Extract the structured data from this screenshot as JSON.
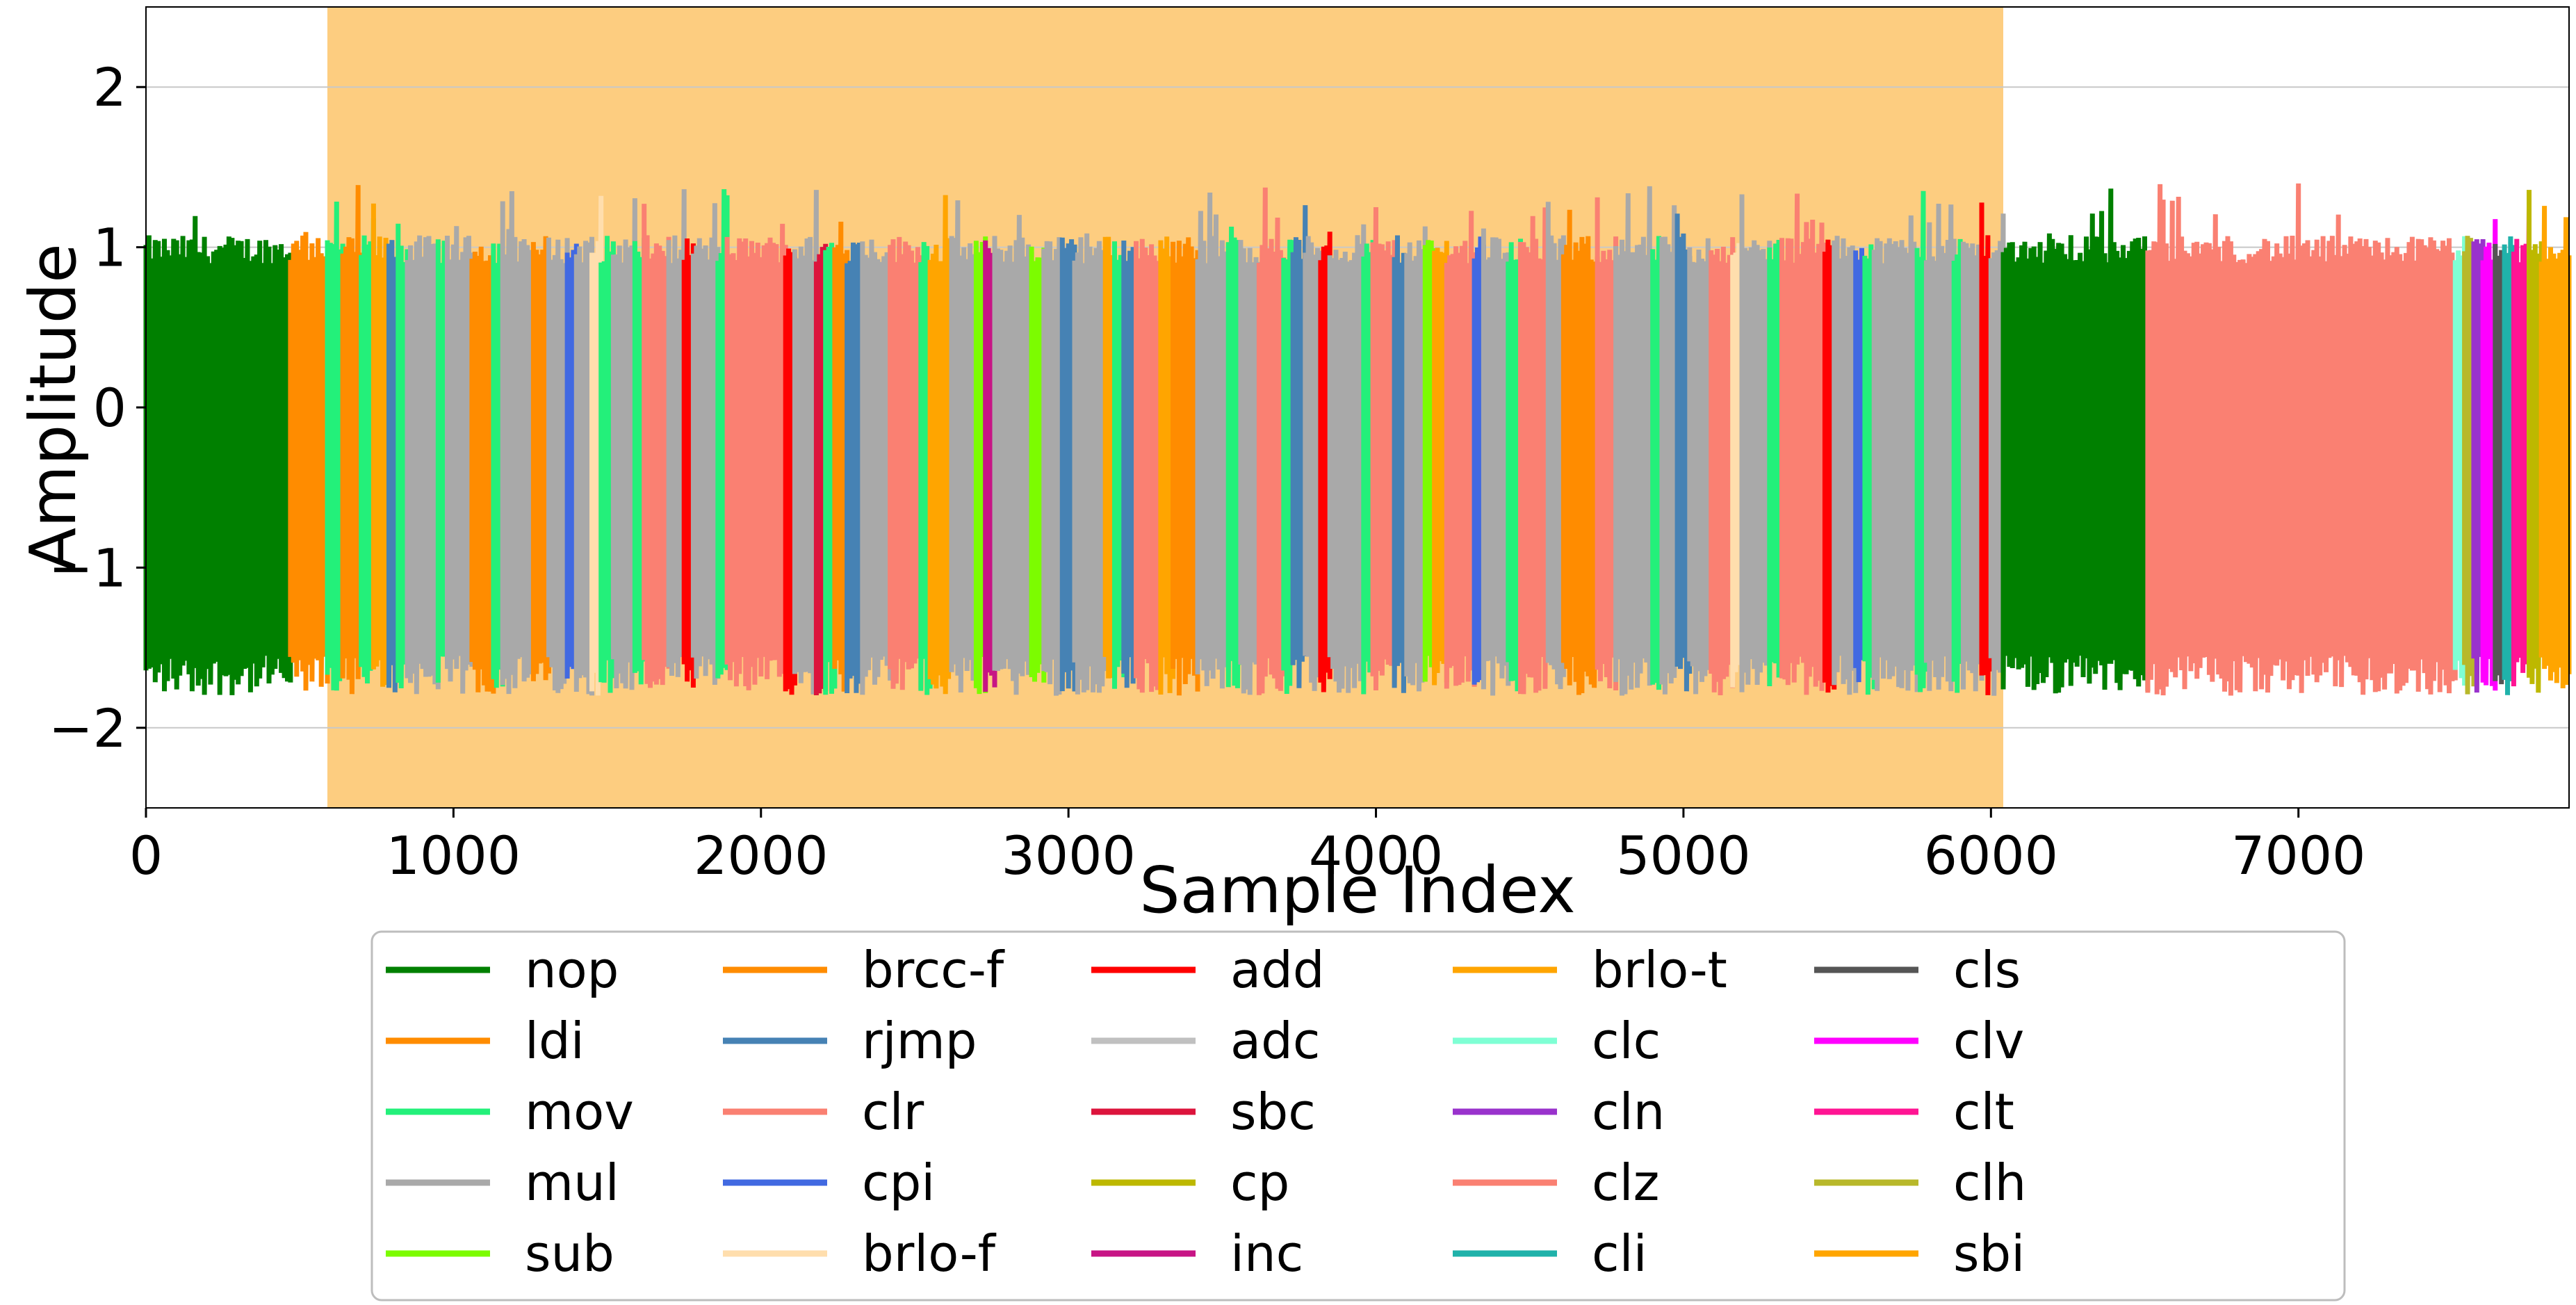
{
  "chart_data": {
    "type": "line",
    "title": "",
    "xlabel": "Sample Index",
    "ylabel": "Amplitude",
    "xlim": [
      0,
      7880
    ],
    "ylim": [
      -2.5,
      2.5
    ],
    "x_ticks": [
      0,
      1000,
      2000,
      3000,
      4000,
      5000,
      6000,
      7000
    ],
    "y_ticks": [
      -2,
      -1,
      0,
      1,
      2
    ],
    "x_tick_labels": [
      "0",
      "1000",
      "2000",
      "3000",
      "4000",
      "5000",
      "6000",
      "7000"
    ],
    "y_tick_labels": [
      "−2",
      "−1",
      "0",
      "1",
      "2"
    ],
    "grid": "horizontal",
    "highlight_region": {
      "x_start": 590,
      "x_end": 6040,
      "color": "#fdcd80"
    },
    "signal_peak_range": [
      0.9,
      1.4
    ],
    "signal_trough_range": [
      -1.8,
      -1.55
    ],
    "legend_position": "bottom-center",
    "legend_columns": 6,
    "series": [
      {
        "name": "nop",
        "color": "#008000"
      },
      {
        "name": "ldi",
        "color": "#ff8c00"
      },
      {
        "name": "mov",
        "color": "#23f07a"
      },
      {
        "name": "mul",
        "color": "#a9a9a9"
      },
      {
        "name": "sub",
        "color": "#7cfc00"
      },
      {
        "name": "brcc-f",
        "color": "#ff8c00"
      },
      {
        "name": "rjmp",
        "color": "#4682b4"
      },
      {
        "name": "clr",
        "color": "#fa8072"
      },
      {
        "name": "cpi",
        "color": "#4169e1"
      },
      {
        "name": "brlo-f",
        "color": "#ffdead"
      },
      {
        "name": "add",
        "color": "#ff0000"
      },
      {
        "name": "adc",
        "color": "#c0c0c0"
      },
      {
        "name": "sbc",
        "color": "#dc143c"
      },
      {
        "name": "cp",
        "color": "#bdb800"
      },
      {
        "name": "inc",
        "color": "#c71585"
      },
      {
        "name": "brlo-t",
        "color": "#ffa500"
      },
      {
        "name": "clc",
        "color": "#7fffd4"
      },
      {
        "name": "cln",
        "color": "#9932cc"
      },
      {
        "name": "clz",
        "color": "#fa8072"
      },
      {
        "name": "cli",
        "color": "#20b2aa"
      },
      {
        "name": "cls",
        "color": "#555555"
      },
      {
        "name": "clv",
        "color": "#ff00ff"
      },
      {
        "name": "clt",
        "color": "#ff1493"
      },
      {
        "name": "clh",
        "color": "#b8b82a"
      },
      {
        "name": "sbi",
        "color": "#ffa500"
      }
    ],
    "segments": [
      {
        "name": "nop",
        "x_start": 0,
        "x_end": 470
      },
      {
        "name": "ldi",
        "x_start": 470,
        "x_end": 590
      },
      {
        "name": "mov",
        "x_start": 590,
        "x_end": 640
      },
      {
        "name": "ldi",
        "x_start": 640,
        "x_end": 700
      },
      {
        "name": "mov",
        "x_start": 700,
        "x_end": 740
      },
      {
        "name": "brlo-t",
        "x_start": 740,
        "x_end": 790
      },
      {
        "name": "rjmp",
        "x_start": 790,
        "x_end": 820
      },
      {
        "name": "mov",
        "x_start": 820,
        "x_end": 850
      },
      {
        "name": "mul",
        "x_start": 850,
        "x_end": 950
      },
      {
        "name": "mov",
        "x_start": 950,
        "x_end": 980
      },
      {
        "name": "mul",
        "x_start": 980,
        "x_end": 1060
      },
      {
        "name": "ldi",
        "x_start": 1060,
        "x_end": 1130
      },
      {
        "name": "mov",
        "x_start": 1130,
        "x_end": 1160
      },
      {
        "name": "mul",
        "x_start": 1160,
        "x_end": 1260
      },
      {
        "name": "brcc-f",
        "x_start": 1260,
        "x_end": 1310
      },
      {
        "name": "mul",
        "x_start": 1310,
        "x_end": 1370
      },
      {
        "name": "cpi",
        "x_start": 1370,
        "x_end": 1400
      },
      {
        "name": "mul",
        "x_start": 1400,
        "x_end": 1450
      },
      {
        "name": "brlo-f",
        "x_start": 1450,
        "x_end": 1480
      },
      {
        "name": "mov",
        "x_start": 1480,
        "x_end": 1520
      },
      {
        "name": "mul",
        "x_start": 1520,
        "x_end": 1590
      },
      {
        "name": "mov",
        "x_start": 1590,
        "x_end": 1620
      },
      {
        "name": "clr",
        "x_start": 1620,
        "x_end": 1700
      },
      {
        "name": "mul",
        "x_start": 1700,
        "x_end": 1750
      },
      {
        "name": "add",
        "x_start": 1750,
        "x_end": 1780
      },
      {
        "name": "mul",
        "x_start": 1780,
        "x_end": 1860
      },
      {
        "name": "mov",
        "x_start": 1860,
        "x_end": 1890
      },
      {
        "name": "clr",
        "x_start": 1890,
        "x_end": 2080
      },
      {
        "name": "add",
        "x_start": 2080,
        "x_end": 2110
      },
      {
        "name": "mul",
        "x_start": 2110,
        "x_end": 2180
      },
      {
        "name": "sbc",
        "x_start": 2180,
        "x_end": 2210
      },
      {
        "name": "mov",
        "x_start": 2210,
        "x_end": 2240
      },
      {
        "name": "brcc-f",
        "x_start": 2240,
        "x_end": 2280
      },
      {
        "name": "rjmp",
        "x_start": 2280,
        "x_end": 2330
      },
      {
        "name": "mul",
        "x_start": 2330,
        "x_end": 2420
      },
      {
        "name": "clr",
        "x_start": 2420,
        "x_end": 2520
      },
      {
        "name": "mov",
        "x_start": 2520,
        "x_end": 2550
      },
      {
        "name": "brlo-t",
        "x_start": 2550,
        "x_end": 2620
      },
      {
        "name": "mul",
        "x_start": 2620,
        "x_end": 2700
      },
      {
        "name": "sub",
        "x_start": 2700,
        "x_end": 2730
      },
      {
        "name": "inc",
        "x_start": 2730,
        "x_end": 2760
      },
      {
        "name": "mul",
        "x_start": 2760,
        "x_end": 2880
      },
      {
        "name": "sub",
        "x_start": 2880,
        "x_end": 2920
      },
      {
        "name": "mul",
        "x_start": 2920,
        "x_end": 2980
      },
      {
        "name": "rjmp",
        "x_start": 2980,
        "x_end": 3020
      },
      {
        "name": "mul",
        "x_start": 3020,
        "x_end": 3120
      },
      {
        "name": "brlo-t",
        "x_start": 3120,
        "x_end": 3150
      },
      {
        "name": "mov",
        "x_start": 3150,
        "x_end": 3180
      },
      {
        "name": "rjmp",
        "x_start": 3180,
        "x_end": 3220
      },
      {
        "name": "clr",
        "x_start": 3220,
        "x_end": 3300
      },
      {
        "name": "brlo-t",
        "x_start": 3300,
        "x_end": 3340
      },
      {
        "name": "ldi",
        "x_start": 3340,
        "x_end": 3420
      },
      {
        "name": "mul",
        "x_start": 3420,
        "x_end": 3520
      },
      {
        "name": "mov",
        "x_start": 3520,
        "x_end": 3560
      },
      {
        "name": "mul",
        "x_start": 3560,
        "x_end": 3620
      },
      {
        "name": "clr",
        "x_start": 3620,
        "x_end": 3700
      },
      {
        "name": "mov",
        "x_start": 3700,
        "x_end": 3730
      },
      {
        "name": "rjmp",
        "x_start": 3730,
        "x_end": 3770
      },
      {
        "name": "mul",
        "x_start": 3770,
        "x_end": 3820
      },
      {
        "name": "add",
        "x_start": 3820,
        "x_end": 3850
      },
      {
        "name": "mul",
        "x_start": 3850,
        "x_end": 3960
      },
      {
        "name": "mov",
        "x_start": 3960,
        "x_end": 3990
      },
      {
        "name": "clr",
        "x_start": 3990,
        "x_end": 4060
      },
      {
        "name": "rjmp",
        "x_start": 4060,
        "x_end": 4100
      },
      {
        "name": "mul",
        "x_start": 4100,
        "x_end": 4160
      },
      {
        "name": "sub",
        "x_start": 4160,
        "x_end": 4190
      },
      {
        "name": "brlo-t",
        "x_start": 4190,
        "x_end": 4230
      },
      {
        "name": "clr",
        "x_start": 4230,
        "x_end": 4320
      },
      {
        "name": "cpi",
        "x_start": 4320,
        "x_end": 4350
      },
      {
        "name": "mul",
        "x_start": 4350,
        "x_end": 4430
      },
      {
        "name": "mov",
        "x_start": 4430,
        "x_end": 4470
      },
      {
        "name": "clr",
        "x_start": 4470,
        "x_end": 4560
      },
      {
        "name": "mul",
        "x_start": 4560,
        "x_end": 4610
      },
      {
        "name": "brcc-f",
        "x_start": 4610,
        "x_end": 4720
      },
      {
        "name": "clr",
        "x_start": 4720,
        "x_end": 4780
      },
      {
        "name": "mul",
        "x_start": 4780,
        "x_end": 4900
      },
      {
        "name": "mov",
        "x_start": 4900,
        "x_end": 4930
      },
      {
        "name": "mul",
        "x_start": 4930,
        "x_end": 4980
      },
      {
        "name": "rjmp",
        "x_start": 4980,
        "x_end": 5020
      },
      {
        "name": "mul",
        "x_start": 5020,
        "x_end": 5090
      },
      {
        "name": "clr",
        "x_start": 5090,
        "x_end": 5160
      },
      {
        "name": "brlo-f",
        "x_start": 5160,
        "x_end": 5190
      },
      {
        "name": "mul",
        "x_start": 5190,
        "x_end": 5280
      },
      {
        "name": "mov",
        "x_start": 5280,
        "x_end": 5320
      },
      {
        "name": "clr",
        "x_start": 5320,
        "x_end": 5460
      },
      {
        "name": "add",
        "x_start": 5460,
        "x_end": 5490
      },
      {
        "name": "mul",
        "x_start": 5490,
        "x_end": 5560
      },
      {
        "name": "cpi",
        "x_start": 5560,
        "x_end": 5590
      },
      {
        "name": "mov",
        "x_start": 5590,
        "x_end": 5620
      },
      {
        "name": "mul",
        "x_start": 5620,
        "x_end": 5760
      },
      {
        "name": "mov",
        "x_start": 5760,
        "x_end": 5790
      },
      {
        "name": "mul",
        "x_start": 5790,
        "x_end": 5880
      },
      {
        "name": "mov",
        "x_start": 5880,
        "x_end": 5910
      },
      {
        "name": "mul",
        "x_start": 5910,
        "x_end": 5970
      },
      {
        "name": "add",
        "x_start": 5970,
        "x_end": 6000
      },
      {
        "name": "mul",
        "x_start": 6000,
        "x_end": 6040
      },
      {
        "name": "nop",
        "x_start": 6040,
        "x_end": 6510
      },
      {
        "name": "clz",
        "x_start": 6510,
        "x_end": 7510
      },
      {
        "name": "clc",
        "x_start": 7510,
        "x_end": 7540
      },
      {
        "name": "clh",
        "x_start": 7540,
        "x_end": 7570
      },
      {
        "name": "cln",
        "x_start": 7570,
        "x_end": 7600
      },
      {
        "name": "clv",
        "x_start": 7600,
        "x_end": 7640
      },
      {
        "name": "cls",
        "x_start": 7640,
        "x_end": 7670
      },
      {
        "name": "cli",
        "x_start": 7670,
        "x_end": 7700
      },
      {
        "name": "clt",
        "x_start": 7700,
        "x_end": 7750
      },
      {
        "name": "cp",
        "x_start": 7750,
        "x_end": 7790
      },
      {
        "name": "sbi",
        "x_start": 7790,
        "x_end": 7880
      }
    ]
  }
}
